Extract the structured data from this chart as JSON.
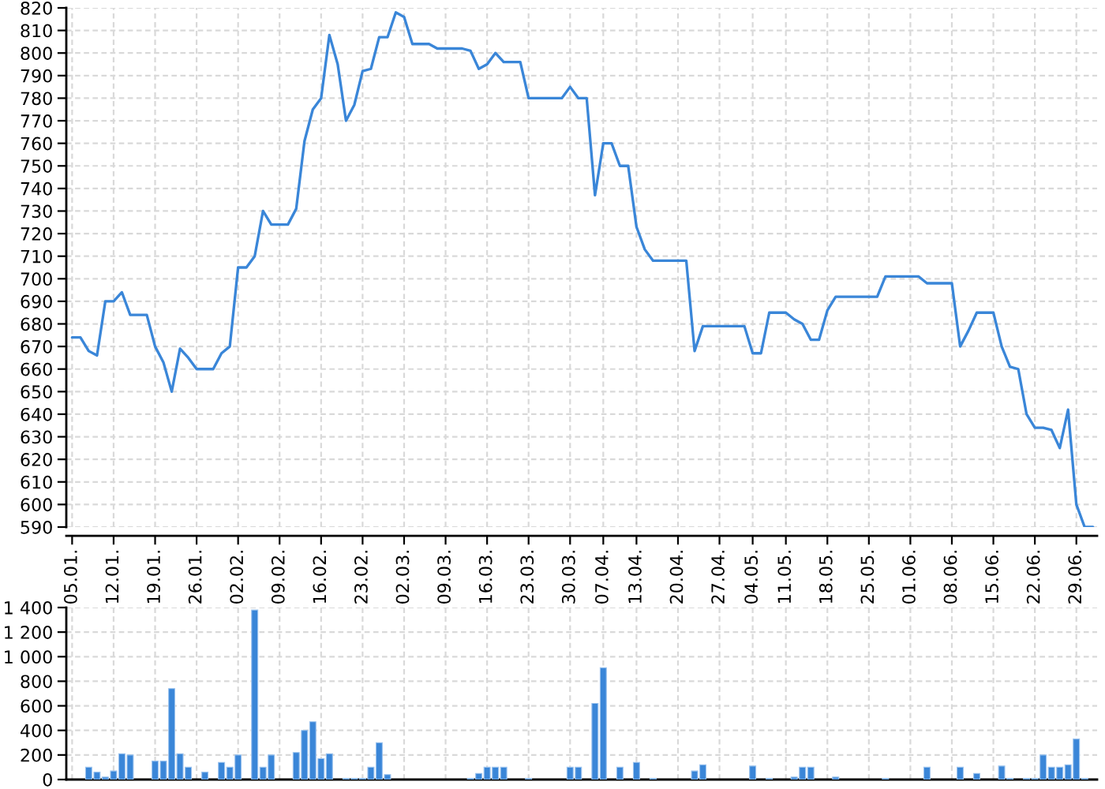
{
  "chart_data": [
    {
      "type": "line",
      "color": "#3a86d8",
      "grid": true,
      "ylim": [
        590,
        820
      ],
      "yticks": [
        590,
        600,
        610,
        620,
        630,
        640,
        650,
        660,
        670,
        680,
        690,
        700,
        710,
        720,
        730,
        740,
        750,
        760,
        770,
        780,
        790,
        800,
        810,
        820
      ],
      "categories": [
        "05.01.",
        null,
        null,
        null,
        null,
        "12.01.",
        null,
        null,
        null,
        null,
        "19.01.",
        null,
        null,
        null,
        null,
        "26.01.",
        null,
        null,
        null,
        null,
        "02.02.",
        null,
        null,
        null,
        null,
        "09.02.",
        null,
        null,
        null,
        null,
        "16.02.",
        null,
        null,
        null,
        null,
        "23.02.",
        null,
        null,
        null,
        null,
        "02.03.",
        null,
        null,
        null,
        null,
        "09.03.",
        null,
        null,
        null,
        null,
        "16.03.",
        null,
        null,
        null,
        null,
        "23.03.",
        null,
        null,
        null,
        null,
        "30.03.",
        null,
        null,
        null,
        "07.04.",
        null,
        null,
        null,
        "13.04.",
        null,
        null,
        null,
        null,
        "20.04.",
        null,
        null,
        null,
        null,
        "27.04.",
        null,
        null,
        null,
        "04.05.",
        null,
        null,
        null,
        "11.05.",
        null,
        null,
        null,
        null,
        "18.05.",
        null,
        null,
        null,
        null,
        "25.05.",
        null,
        null,
        null,
        null,
        "01.06.",
        null,
        null,
        null,
        null,
        "08.06.",
        null,
        null,
        null,
        null,
        "15.06.",
        null,
        null,
        null,
        null,
        "22.06.",
        null,
        null,
        null,
        null,
        "29.06.",
        null,
        null
      ],
      "values": [
        674,
        674,
        668,
        666,
        690,
        690,
        694,
        684,
        684,
        684,
        670,
        663,
        650,
        669,
        665,
        660,
        660,
        660,
        667,
        670,
        705,
        705,
        710,
        730,
        724,
        724,
        724,
        731,
        761,
        775,
        780,
        808,
        795,
        770,
        777,
        792,
        793,
        807,
        807,
        818,
        816,
        804,
        804,
        804,
        802,
        802,
        802,
        802,
        801,
        793,
        795,
        800,
        796,
        796,
        796,
        780,
        780,
        780,
        780,
        780,
        785,
        780,
        780,
        737,
        760,
        760,
        750,
        750,
        723,
        713,
        708,
        708,
        708,
        708,
        708,
        668,
        679,
        679,
        679,
        679,
        679,
        679,
        667,
        667,
        685,
        685,
        685,
        682,
        680,
        673,
        673,
        686,
        692,
        692,
        692,
        692,
        692,
        692,
        701,
        701,
        701,
        701,
        701,
        698,
        698,
        698,
        698,
        670,
        677,
        685,
        685,
        685,
        670,
        661,
        660,
        640,
        634,
        634,
        633,
        625,
        642,
        600,
        590,
        590
      ]
    },
    {
      "type": "bar",
      "color": "#3a86d8",
      "grid": true,
      "tick_labels": "y",
      "ylim": [
        0,
        1400
      ],
      "yticks": [
        0,
        200,
        400,
        600,
        800,
        {
          "value": 1000,
          "label": "1 000"
        },
        {
          "value": 1200,
          "label": "1 200"
        },
        {
          "value": 1400,
          "label": "1 400"
        }
      ],
      "categories": [
        "05.01.",
        null,
        null,
        null,
        null,
        "12.01.",
        null,
        null,
        null,
        null,
        "19.01.",
        null,
        null,
        null,
        null,
        "26.01.",
        null,
        null,
        null,
        null,
        "02.02.",
        null,
        null,
        null,
        null,
        "09.02.",
        null,
        null,
        null,
        null,
        "16.02.",
        null,
        null,
        null,
        null,
        "23.02.",
        null,
        null,
        null,
        null,
        "02.03.",
        null,
        null,
        null,
        null,
        "09.03.",
        null,
        null,
        null,
        null,
        "16.03.",
        null,
        null,
        null,
        null,
        "23.03.",
        null,
        null,
        null,
        null,
        "30.03.",
        null,
        null,
        null,
        "07.04.",
        null,
        null,
        null,
        "13.04.",
        null,
        null,
        null,
        null,
        "20.04.",
        null,
        null,
        null,
        null,
        "27.04.",
        null,
        null,
        null,
        "04.05.",
        null,
        null,
        null,
        "11.05.",
        null,
        null,
        null,
        null,
        "18.05.",
        null,
        null,
        null,
        null,
        "25.05.",
        null,
        null,
        null,
        null,
        "01.06.",
        null,
        null,
        null,
        null,
        "08.06.",
        null,
        null,
        null,
        null,
        "15.06.",
        null,
        null,
        null,
        null,
        "22.06.",
        null,
        null,
        null,
        null,
        "29.06.",
        null,
        null
      ],
      "values": [
        null,
        null,
        100,
        60,
        20,
        70,
        210,
        200,
        null,
        null,
        150,
        150,
        740,
        210,
        100,
        null,
        60,
        null,
        140,
        100,
        200,
        null,
        1380,
        100,
        200,
        null,
        null,
        220,
        400,
        470,
        170,
        210,
        null,
        10,
        10,
        10,
        100,
        300,
        40,
        null,
        null,
        null,
        null,
        null,
        null,
        null,
        null,
        null,
        10,
        50,
        100,
        100,
        100,
        null,
        null,
        10,
        null,
        null,
        null,
        null,
        100,
        100,
        null,
        620,
        910,
        null,
        100,
        null,
        140,
        null,
        10,
        null,
        null,
        null,
        null,
        70,
        120,
        null,
        null,
        null,
        null,
        null,
        110,
        null,
        10,
        null,
        null,
        20,
        100,
        100,
        null,
        null,
        20,
        null,
        null,
        null,
        null,
        null,
        10,
        null,
        null,
        null,
        null,
        100,
        null,
        null,
        null,
        100,
        null,
        50,
        null,
        null,
        110,
        10,
        null,
        10,
        10,
        200,
        100,
        100,
        120,
        330,
        10,
        null
      ]
    }
  ]
}
